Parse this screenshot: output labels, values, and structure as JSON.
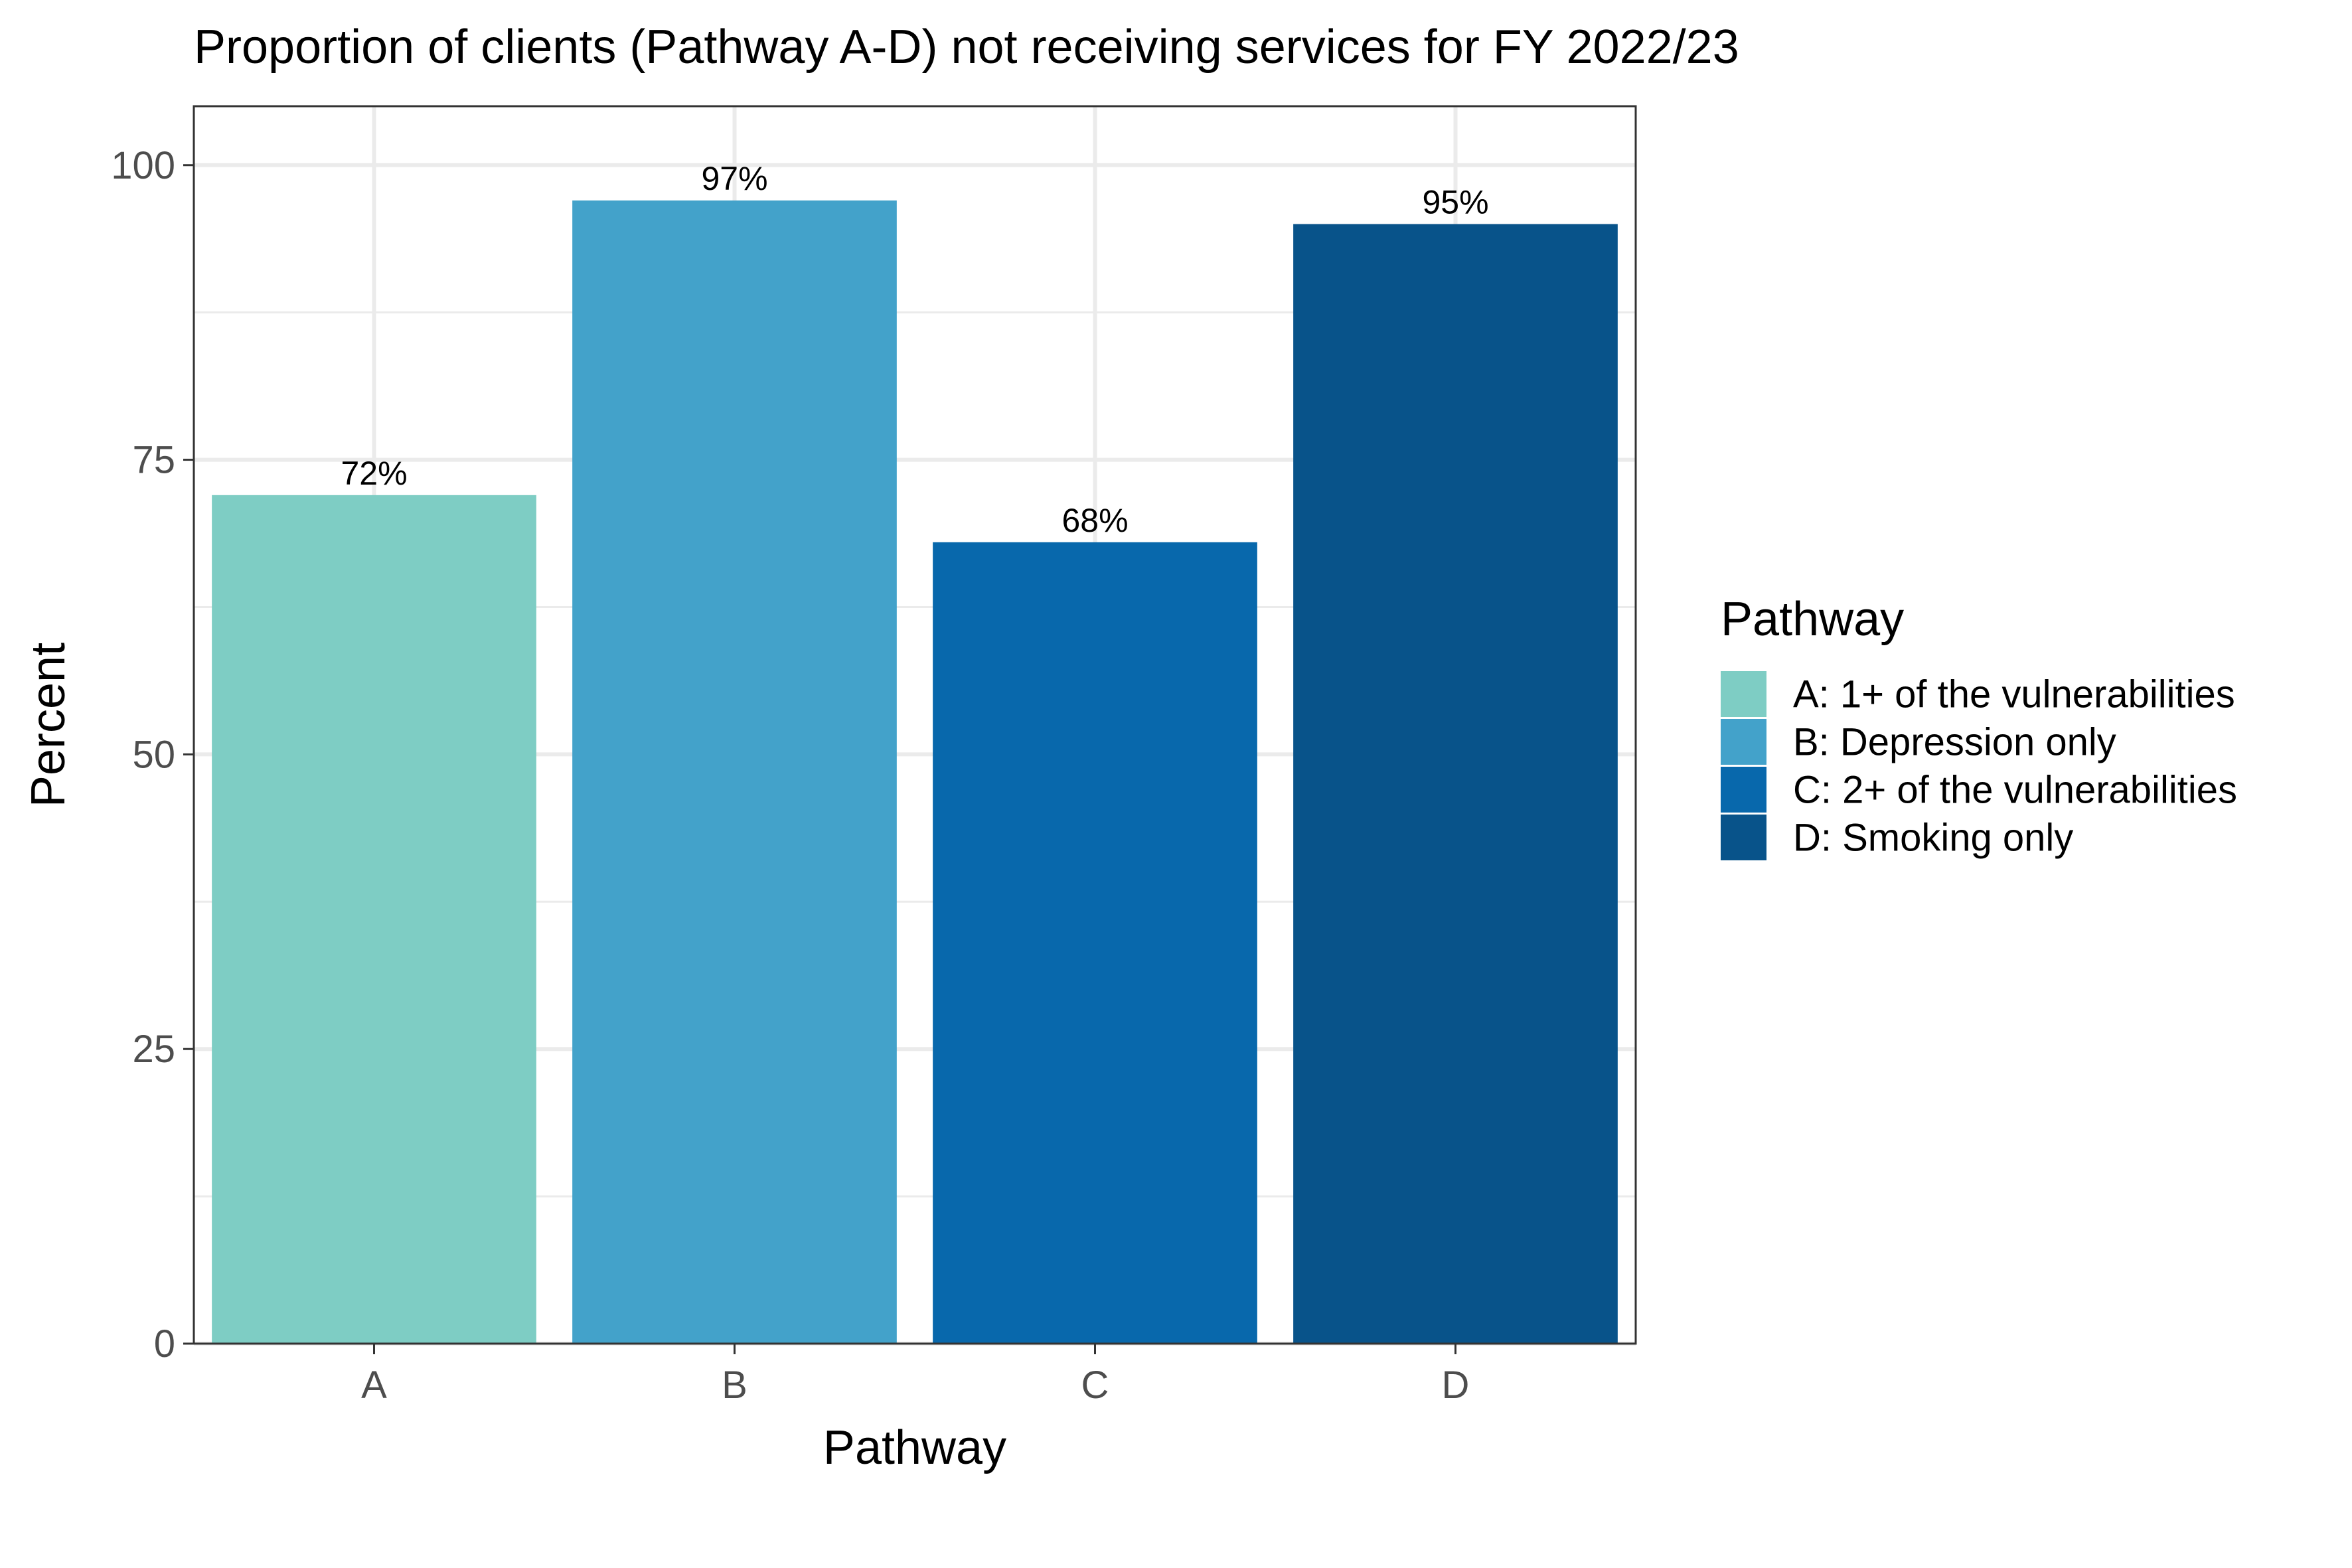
{
  "chart_data": {
    "type": "bar",
    "title": "Proportion of clients (Pathway A-D) not receiving services for FY 2022/23",
    "xlabel": "Pathway",
    "ylabel": "Percent",
    "ylim": [
      0,
      105
    ],
    "yticks": [
      0,
      25,
      50,
      75,
      100
    ],
    "grid": true,
    "categories": [
      "A",
      "B",
      "C",
      "D"
    ],
    "values": [
      72,
      97,
      68,
      95
    ],
    "data_labels": [
      "72%",
      "97%",
      "68%",
      "95%"
    ],
    "colors": [
      "#7ecdc4",
      "#43a2ca",
      "#0868ac",
      "#08538a"
    ],
    "legend": {
      "title": "Pathway",
      "position": "right",
      "entries": [
        "A: 1+ of the vulnerabilities",
        "B: Depression only",
        "C: 2+ of the vulnerabilities",
        "D: Smoking only"
      ]
    }
  }
}
